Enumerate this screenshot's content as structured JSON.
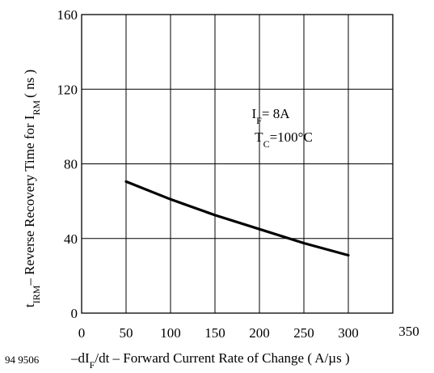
{
  "figure_id": "94 9506",
  "chart_data": {
    "type": "line",
    "x": [
      50,
      100,
      150,
      200,
      250,
      300
    ],
    "series": [
      {
        "values": [
          70.5,
          61,
          52.5,
          45,
          37.5,
          31
        ]
      }
    ],
    "xlim": [
      0,
      350
    ],
    "ylim": [
      0,
      160
    ],
    "x_ticks": [
      "0",
      "50",
      "100",
      "150",
      "200",
      "250",
      "300",
      "350"
    ],
    "y_ticks": [
      "0",
      "40",
      "80",
      "120",
      "160"
    ],
    "grid": true,
    "xlabel": {
      "pre": "–dI",
      "sub": "F",
      "post": "/dt – Forward Current Rate of Change ( A/µs )"
    },
    "ylabel": {
      "a": "t",
      "a_sub": "IRM",
      "b": "– Reverse Recovery Time for I",
      "b_sub": "RM",
      "c": "( ns )"
    },
    "annotation": {
      "line1_pre": "I",
      "line1_sub": "F",
      "line1_post": "= 8A",
      "line2_pre": "T",
      "line2_sub": "C",
      "line2_post": "=100°C"
    }
  }
}
